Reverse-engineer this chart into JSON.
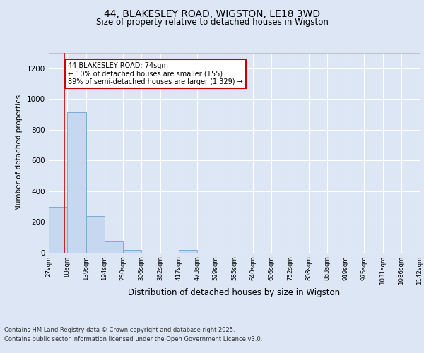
{
  "title": "44, BLAKESLEY ROAD, WIGSTON, LE18 3WD",
  "subtitle": "Size of property relative to detached houses in Wigston",
  "xlabel": "Distribution of detached houses by size in Wigston",
  "ylabel": "Number of detached properties",
  "footer_line1": "Contains HM Land Registry data © Crown copyright and database right 2025.",
  "footer_line2": "Contains public sector information licensed under the Open Government Licence v3.0.",
  "annotation_line1": "44 BLAKESLEY ROAD: 74sqm",
  "annotation_line2": "← 10% of detached houses are smaller (155)",
  "annotation_line3": "89% of semi-detached houses are larger (1,329) →",
  "bar_edges": [
    27,
    83,
    139,
    194,
    250,
    306,
    362,
    417,
    473,
    529,
    585,
    640,
    696,
    752,
    808,
    863,
    919,
    975,
    1031,
    1086,
    1142
  ],
  "bar_heights": [
    295,
    915,
    235,
    70,
    15,
    0,
    0,
    15,
    0,
    0,
    0,
    0,
    0,
    0,
    0,
    0,
    0,
    0,
    0,
    0
  ],
  "bar_color": "#c5d8f0",
  "bar_edge_color": "#7aadd4",
  "red_line_x": 74,
  "ylim": [
    0,
    1300
  ],
  "yticks": [
    0,
    200,
    400,
    600,
    800,
    1000,
    1200
  ],
  "bg_color": "#dce6f5",
  "plot_bg_color": "#dce6f5",
  "grid_color": "#ffffff",
  "annotation_box_color": "#ffffff",
  "annotation_box_edge": "#cc0000",
  "red_line_color": "#cc0000"
}
